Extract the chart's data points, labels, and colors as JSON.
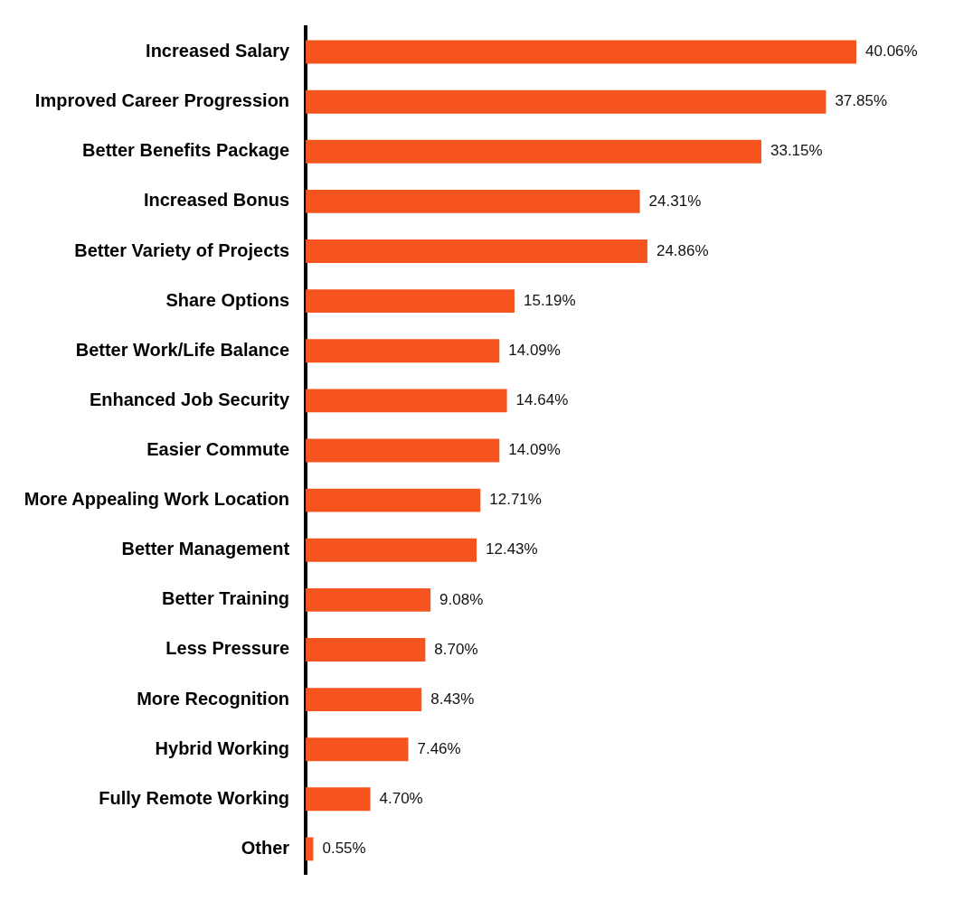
{
  "chart_data": {
    "type": "bar",
    "orientation": "horizontal",
    "categories": [
      "Increased Salary",
      "Improved Career Progression",
      "Better Benefits Package",
      "Increased Bonus",
      "Better Variety of Projects",
      "Share Options",
      "Better Work/Life Balance",
      "Enhanced Job Security",
      "Easier Commute",
      "More Appealing Work Location",
      "Better Management",
      "Better Training",
      "Less Pressure",
      "More Recognition",
      "Hybrid Working",
      "Fully Remote Working",
      "Other"
    ],
    "values": [
      40.06,
      37.85,
      33.15,
      24.31,
      24.86,
      15.19,
      14.09,
      14.64,
      14.09,
      12.71,
      12.43,
      9.08,
      8.7,
      8.43,
      7.46,
      4.7,
      0.55
    ],
    "value_labels": [
      "40.06%",
      "37.85%",
      "33.15%",
      "24.31%",
      "24.86%",
      "15.19%",
      "14.09%",
      "14.64%",
      "14.09%",
      "12.71%",
      "12.43%",
      "9.08%",
      "8.70%",
      "8.43%",
      "7.46%",
      "4.70%",
      "0.55%"
    ],
    "color": "#f5541f"
  }
}
